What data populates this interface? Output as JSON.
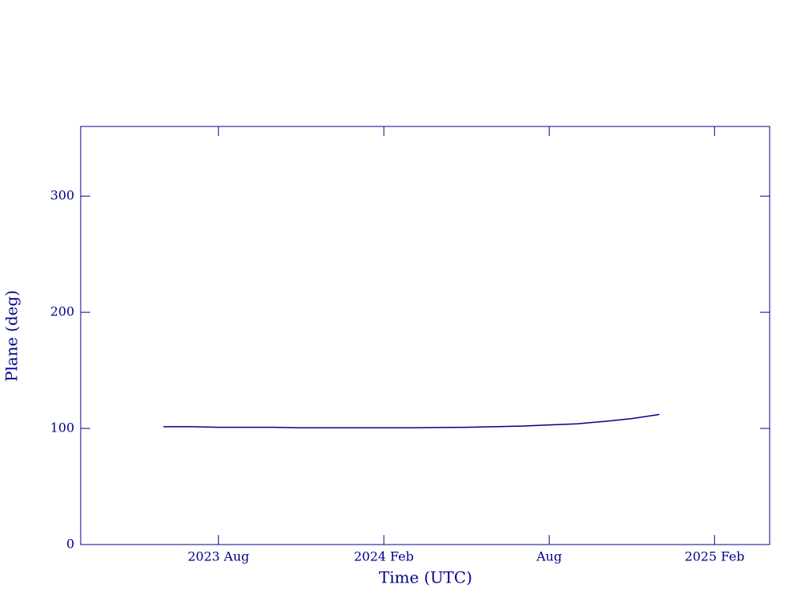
{
  "chart_data": {
    "type": "line",
    "x_label": "Time (UTC)",
    "y_label": "Plane (deg)",
    "x": [
      "2023-06",
      "2023-07",
      "2023-08",
      "2023-09",
      "2023-10",
      "2023-11",
      "2023-12",
      "2024-01",
      "2024-02",
      "2024-03",
      "2024-04",
      "2024-05",
      "2024-06",
      "2024-07",
      "2024-08",
      "2024-09",
      "2024-10",
      "2024-11",
      "2024-12"
    ],
    "series": [
      {
        "color": "#00008b",
        "values": [
          101.5,
          101.5,
          101,
          101,
          101,
          100.5,
          100.5,
          100.5,
          100.5,
          100.5,
          100.8,
          101,
          101.5,
          102,
          103,
          104,
          106,
          108.5,
          112
        ]
      }
    ],
    "xlim": [
      "2023-03",
      "2025-04"
    ],
    "xticks": [
      {
        "value": "2023-08",
        "label": "2023 Aug"
      },
      {
        "value": "2024-02",
        "label": "2024 Feb"
      },
      {
        "value": "2024-08",
        "label": "Aug"
      },
      {
        "value": "2025-02",
        "label": "2025 Feb"
      }
    ],
    "ylim": [
      0,
      360
    ],
    "yticks": [
      0,
      100,
      200,
      300
    ],
    "axis_color": "#00008b"
  }
}
